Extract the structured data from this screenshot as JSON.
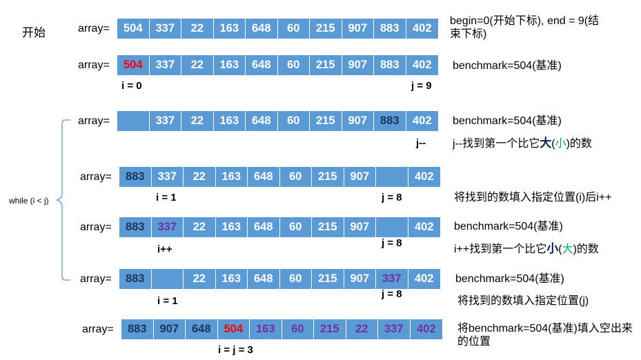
{
  "start_label": "开始",
  "array_label": "array=",
  "while_label": "while (i < j)",
  "rows": [
    {
      "cells": [
        {
          "v": "504",
          "c": "white"
        },
        {
          "v": "337",
          "c": "white"
        },
        {
          "v": "22",
          "c": "white"
        },
        {
          "v": "163",
          "c": "white"
        },
        {
          "v": "648",
          "c": "white"
        },
        {
          "v": "60",
          "c": "white"
        },
        {
          "v": "215",
          "c": "white"
        },
        {
          "v": "907",
          "c": "white"
        },
        {
          "v": "883",
          "c": "white"
        },
        {
          "v": "402",
          "c": "white"
        }
      ],
      "note": "begin=0(开始下标), end = 9(结束下标)",
      "left_index": "",
      "right_index": ""
    },
    {
      "cells": [
        {
          "v": "504",
          "c": "red"
        },
        {
          "v": "337",
          "c": "white"
        },
        {
          "v": "22",
          "c": "white"
        },
        {
          "v": "163",
          "c": "white"
        },
        {
          "v": "648",
          "c": "white"
        },
        {
          "v": "60",
          "c": "white"
        },
        {
          "v": "215",
          "c": "white"
        },
        {
          "v": "907",
          "c": "white"
        },
        {
          "v": "883",
          "c": "white"
        },
        {
          "v": "402",
          "c": "white"
        }
      ],
      "note": "benchmark=504(基准)",
      "left_index": "i = 0",
      "right_index": "j = 9"
    },
    {
      "cells": [
        {
          "v": "",
          "c": "white"
        },
        {
          "v": "337",
          "c": "white"
        },
        {
          "v": "22",
          "c": "white"
        },
        {
          "v": "163",
          "c": "white"
        },
        {
          "v": "648",
          "c": "white"
        },
        {
          "v": "60",
          "c": "white"
        },
        {
          "v": "215",
          "c": "white"
        },
        {
          "v": "907",
          "c": "white"
        },
        {
          "v": "883",
          "c": "navy"
        },
        {
          "v": "402",
          "c": "white"
        }
      ],
      "note": "benchmark=504(基准)",
      "note2_parts": [
        "j--找到第一个比它",
        "大",
        "(",
        "小",
        ")的数"
      ],
      "left_index": "",
      "right_index": "j--"
    },
    {
      "cells": [
        {
          "v": "883",
          "c": "navy"
        },
        {
          "v": "337",
          "c": "white"
        },
        {
          "v": "22",
          "c": "white"
        },
        {
          "v": "163",
          "c": "white"
        },
        {
          "v": "648",
          "c": "white"
        },
        {
          "v": "60",
          "c": "white"
        },
        {
          "v": "215",
          "c": "white"
        },
        {
          "v": "907",
          "c": "white"
        },
        {
          "v": "",
          "c": "white"
        },
        {
          "v": "402",
          "c": "white"
        }
      ],
      "note": "将找到的数填入指定位置(i)后i++",
      "left_index": "i = 1",
      "right_index": "j = 8"
    },
    {
      "cells": [
        {
          "v": "883",
          "c": "navy"
        },
        {
          "v": "337",
          "c": "purple"
        },
        {
          "v": "22",
          "c": "white"
        },
        {
          "v": "163",
          "c": "white"
        },
        {
          "v": "648",
          "c": "white"
        },
        {
          "v": "60",
          "c": "white"
        },
        {
          "v": "215",
          "c": "white"
        },
        {
          "v": "907",
          "c": "white"
        },
        {
          "v": "",
          "c": "white"
        },
        {
          "v": "402",
          "c": "white"
        }
      ],
      "note": "benchmark=504(基准)",
      "note2_parts": [
        "i++找到第一个比它",
        "小",
        "(",
        "大",
        ")的数"
      ],
      "left_index": "i++",
      "right_index": "j = 8"
    },
    {
      "cells": [
        {
          "v": "883",
          "c": "navy"
        },
        {
          "v": "",
          "c": "white"
        },
        {
          "v": "22",
          "c": "white"
        },
        {
          "v": "163",
          "c": "white"
        },
        {
          "v": "648",
          "c": "white"
        },
        {
          "v": "60",
          "c": "white"
        },
        {
          "v": "215",
          "c": "white"
        },
        {
          "v": "907",
          "c": "white"
        },
        {
          "v": "337",
          "c": "purple"
        },
        {
          "v": "402",
          "c": "white"
        }
      ],
      "note": "benchmark=504(基准)",
      "note2": "将找到的数填入指定位置(j)",
      "left_index": "i = 1",
      "right_index": "j = 8"
    },
    {
      "cells": [
        {
          "v": "883",
          "c": "navy"
        },
        {
          "v": "907",
          "c": "navy"
        },
        {
          "v": "648",
          "c": "navy"
        },
        {
          "v": "504",
          "c": "red"
        },
        {
          "v": "163",
          "c": "purple"
        },
        {
          "v": "60",
          "c": "purple"
        },
        {
          "v": "215",
          "c": "purple"
        },
        {
          "v": "22",
          "c": "purple"
        },
        {
          "v": "337",
          "c": "purple"
        },
        {
          "v": "402",
          "c": "purple"
        }
      ],
      "note": "将benchmark=504(基准)填入空出来的位置",
      "center_index": "i = j = 3"
    }
  ]
}
